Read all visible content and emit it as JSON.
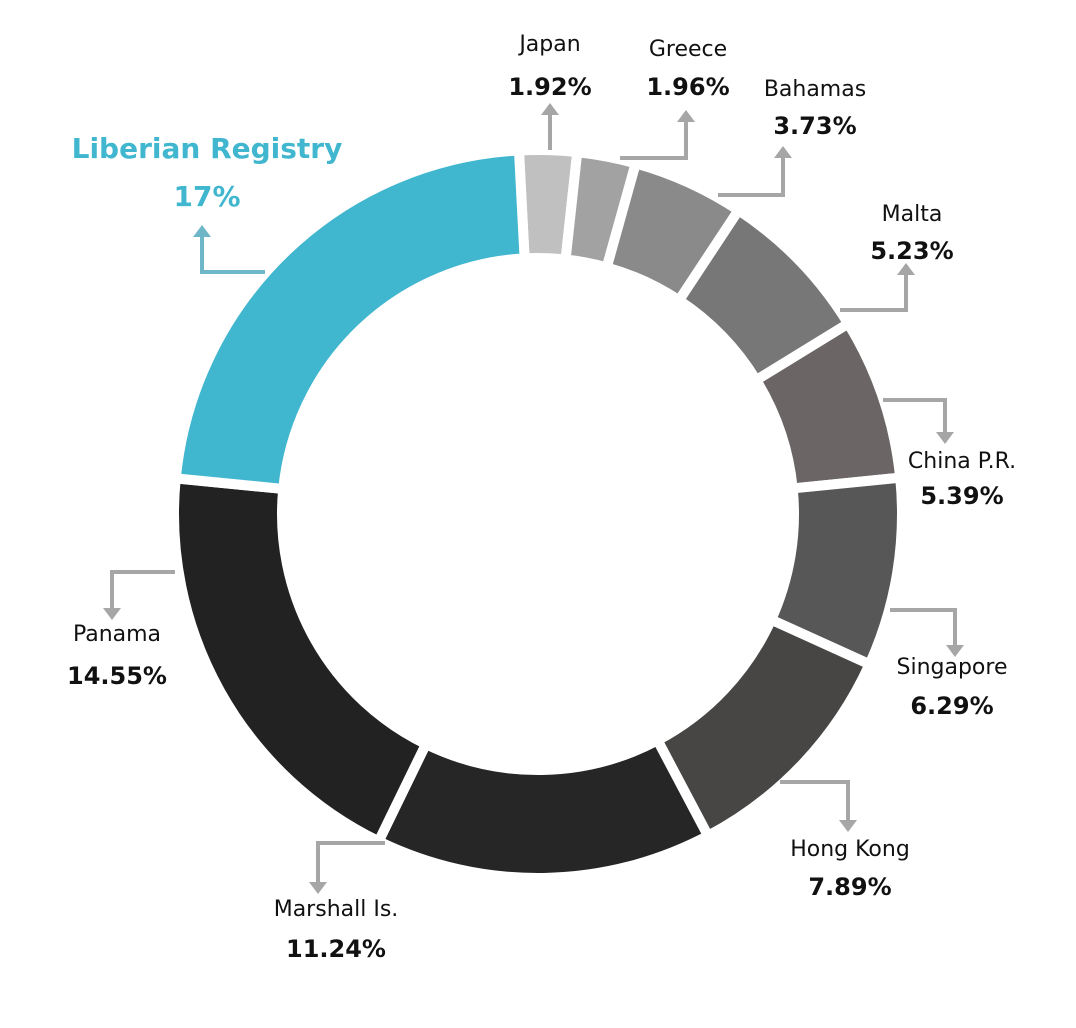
{
  "chart_data": {
    "type": "pie",
    "categories": [
      "Japan",
      "Greece",
      "Bahamas",
      "Malta",
      "China P.R.",
      "Singapore",
      "Hong Kong",
      "Marshall Is.",
      "Panama",
      "Liberian Registry"
    ],
    "values": [
      1.92,
      1.96,
      3.73,
      5.23,
      5.39,
      6.29,
      7.89,
      11.24,
      14.55,
      17
    ],
    "value_labels": [
      "1.92%",
      "1.96%",
      "3.73%",
      "5.23%",
      "5.39%",
      "6.29%",
      "7.89%",
      "11.24%",
      "14.55%",
      "17%"
    ],
    "colors": [
      "#c0c0c0",
      "#a3a2a2",
      "#8a8a8a",
      "#777777",
      "#6b6665",
      "#575757",
      "#474645",
      "#262626",
      "#222222",
      "#41b6cf"
    ]
  }
}
